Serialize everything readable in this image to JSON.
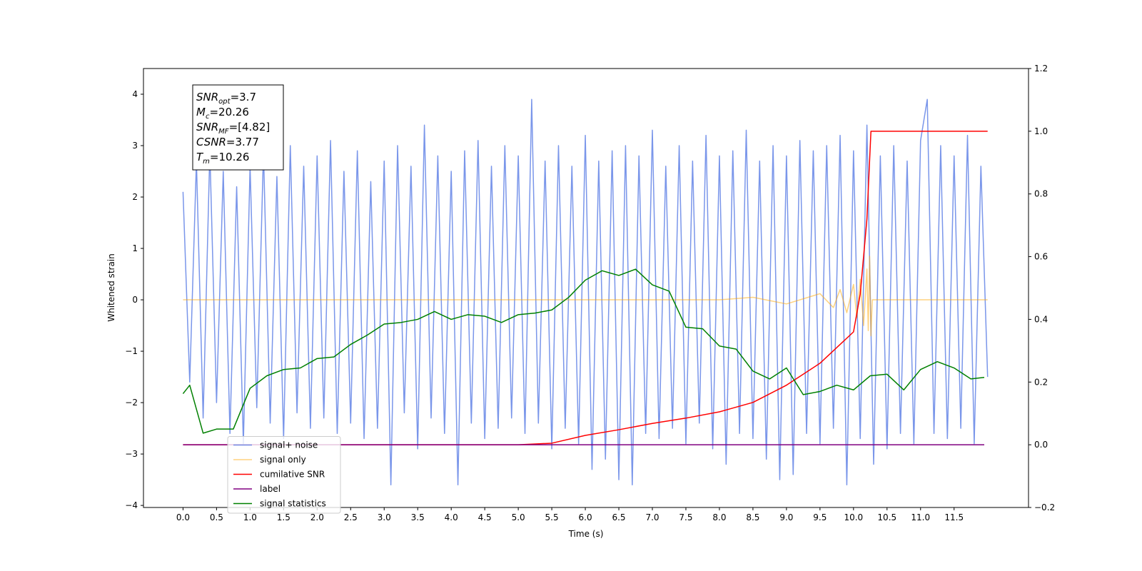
{
  "chart_data": {
    "type": "line",
    "xlabel": "Time (s)",
    "ylabel": "Whitened strain",
    "xlim": [
      -0.59,
      12.61
    ],
    "ylim": [
      -4.04,
      4.5
    ],
    "y2lim": [
      -0.2,
      1.2
    ],
    "xticks": [
      {
        "value": 0,
        "label": "0.0"
      },
      0.5,
      {
        "value": 1,
        "label": "1.0"
      },
      1.5,
      {
        "value": 2,
        "label": "2.0"
      },
      2.5,
      {
        "value": 3,
        "label": "3.0"
      },
      3.5,
      {
        "value": 4,
        "label": "4.0"
      },
      4.5,
      {
        "value": 5,
        "label": "5.0"
      },
      5.5,
      {
        "value": 6,
        "label": "6.0"
      },
      6.5,
      {
        "value": 7,
        "label": "7.0"
      },
      7.5,
      {
        "value": 8,
        "label": "8.0"
      },
      8.5,
      {
        "value": 9,
        "label": "9.0"
      },
      9.5,
      {
        "value": 10,
        "label": "10.0"
      },
      10.5,
      {
        "value": 11,
        "label": "11.0"
      },
      11.5
    ],
    "yticks": [
      {
        "value": -4,
        "label": "−4"
      },
      {
        "value": -3,
        "label": "−3"
      },
      {
        "value": -2,
        "label": "−2"
      },
      {
        "value": -1,
        "label": "−1"
      },
      0,
      1,
      2,
      3,
      4
    ],
    "y2ticks": [
      {
        "value": -0.2,
        "label": "−0.2"
      },
      {
        "value": 0,
        "label": "0.0"
      },
      0.2,
      0.4,
      0.6,
      0.8,
      {
        "value": 1,
        "label": "1.0"
      },
      1.2
    ],
    "legend": "lower left",
    "annotations": [
      {
        "symbol": "SNR",
        "subscript": "opt",
        "text": "=3.7"
      },
      {
        "symbol": "M",
        "subscript": "c",
        "text": "=20.26"
      },
      {
        "symbol": "SNR",
        "subscript": "MF",
        "text": "=[4.82]"
      },
      {
        "symbol": "CSNR",
        "text": "=3.77"
      },
      {
        "symbol": "T",
        "subscript": "m",
        "text": "=10.26"
      }
    ],
    "series": [
      {
        "name": "signal+ noise",
        "color": "#4169e1",
        "alpha": 0.7,
        "axis": "y",
        "x": [
          0,
          0.1,
          0.2,
          0.3,
          0.4,
          0.5,
          0.6,
          0.7,
          0.8,
          0.9,
          1,
          1.1,
          1.2,
          1.3,
          1.4,
          1.5,
          1.6,
          1.7,
          1.8,
          1.9,
          2,
          2.1,
          2.2,
          2.3,
          2.4,
          2.5,
          2.6,
          2.7,
          2.8,
          2.9,
          3,
          3.1,
          3.2,
          3.3,
          3.4,
          3.5,
          3.6,
          3.7,
          3.8,
          3.9,
          4,
          4.1,
          4.2,
          4.3,
          4.4,
          4.5,
          4.6,
          4.7,
          4.8,
          4.9,
          5,
          5.1,
          5.2,
          5.3,
          5.4,
          5.5,
          5.6,
          5.7,
          5.8,
          5.9,
          6,
          6.1,
          6.2,
          6.3,
          6.4,
          6.5,
          6.6,
          6.7,
          6.8,
          6.9,
          7,
          7.1,
          7.2,
          7.3,
          7.4,
          7.5,
          7.6,
          7.7,
          7.8,
          7.9,
          8,
          8.1,
          8.2,
          8.3,
          8.4,
          8.5,
          8.6,
          8.7,
          8.8,
          8.9,
          9,
          9.1,
          9.2,
          9.3,
          9.4,
          9.5,
          9.6,
          9.7,
          9.8,
          9.9,
          10,
          10.1,
          10.2,
          10.3,
          10.4,
          10.5,
          10.6,
          10.7,
          10.8,
          10.9,
          11,
          11.1,
          11.2,
          11.3,
          11.4,
          11.5,
          11.6,
          11.7,
          11.8,
          11.9,
          12
        ],
        "values": [
          2.1,
          -1.6,
          2.7,
          -2.3,
          2.9,
          -2.0,
          2.5,
          -2.6,
          2.2,
          -2.8,
          2.6,
          -2.1,
          2.9,
          -2.4,
          2.4,
          -2.7,
          3.0,
          -2.2,
          2.6,
          -2.5,
          2.8,
          -2.3,
          3.1,
          -2.6,
          2.5,
          -2.4,
          2.9,
          -2.7,
          2.3,
          -2.5,
          2.7,
          -3.6,
          3.0,
          -2.2,
          2.6,
          -2.9,
          3.4,
          -2.3,
          2.8,
          -2.6,
          2.5,
          -3.6,
          2.9,
          -2.4,
          3.1,
          -2.7,
          2.6,
          -2.5,
          3.0,
          -2.3,
          2.8,
          -2.6,
          3.9,
          -2.4,
          2.7,
          -2.9,
          3.0,
          -2.5,
          2.6,
          -2.8,
          3.2,
          -3.3,
          2.7,
          -3.1,
          2.9,
          -3.5,
          3.0,
          -3.6,
          2.8,
          -2.6,
          3.3,
          -2.7,
          2.6,
          -2.5,
          3.0,
          -2.8,
          2.7,
          -2.4,
          3.2,
          -2.9,
          2.8,
          -3.2,
          2.9,
          -2.6,
          3.3,
          -2.7,
          2.7,
          -3.1,
          3.0,
          -3.5,
          2.8,
          -3.4,
          3.1,
          -2.6,
          2.9,
          -2.8,
          3.0,
          -2.5,
          3.2,
          -3.6,
          2.9,
          -2.7,
          3.4,
          -3.2,
          2.8,
          -2.9,
          3.0,
          -2.6,
          2.7,
          -2.8,
          3.1,
          3.9,
          -2.6,
          3.0,
          -2.7,
          2.8,
          -2.5,
          3.2,
          -2.8,
          2.6,
          -1.5
        ]
      },
      {
        "name": "signal only",
        "color": "#ffa500",
        "alpha": 0.5,
        "axis": "y",
        "x": [
          0,
          8,
          8.5,
          9,
          9.5,
          9.7,
          9.8,
          9.9,
          10,
          10.05,
          10.1,
          10.15,
          10.2,
          10.22,
          10.24,
          10.26,
          10.28,
          12
        ],
        "values": [
          0,
          0,
          0.05,
          -0.08,
          0.12,
          -0.15,
          0.2,
          -0.25,
          0.3,
          -0.35,
          0.4,
          -0.5,
          0.6,
          -0.6,
          0.85,
          -0.7,
          0,
          0
        ]
      },
      {
        "name": "cumilative SNR",
        "color": "#ff0000",
        "alpha": 1,
        "axis": "y2",
        "x": [
          0,
          5,
          5.5,
          6,
          6.5,
          7,
          7.5,
          8,
          8.5,
          9,
          9.5,
          9.8,
          10,
          10.1,
          10.2,
          10.26,
          12
        ],
        "values": [
          0,
          0,
          0.005,
          0.03,
          0.048,
          0.068,
          0.085,
          0.105,
          0.135,
          0.19,
          0.26,
          0.32,
          0.36,
          0.48,
          0.72,
          1.0,
          1.0
        ]
      },
      {
        "name": "label",
        "color": "#800080",
        "alpha": 1,
        "axis": "y2",
        "x": [
          0,
          11.95
        ],
        "values": [
          0,
          0
        ]
      },
      {
        "name": "signal statistics",
        "color": "#008000",
        "alpha": 1,
        "axis": "y2",
        "x": [
          0,
          0.1,
          0.3,
          0.5,
          0.75,
          1,
          1.25,
          1.5,
          1.75,
          2,
          2.25,
          2.5,
          2.75,
          3,
          3.25,
          3.5,
          3.75,
          4,
          4.25,
          4.5,
          4.75,
          5,
          5.25,
          5.5,
          5.75,
          6,
          6.25,
          6.5,
          6.75,
          7,
          7.25,
          7.5,
          7.75,
          8,
          8.25,
          8.5,
          8.75,
          9,
          9.25,
          9.5,
          9.75,
          10,
          10.25,
          10.5,
          10.75,
          11,
          11.25,
          11.5,
          11.75,
          11.95
        ],
        "values": [
          0.163,
          0.19,
          0.037,
          0.05,
          0.05,
          0.18,
          0.22,
          0.24,
          0.245,
          0.275,
          0.28,
          0.32,
          0.35,
          0.385,
          0.39,
          0.4,
          0.425,
          0.4,
          0.415,
          0.41,
          0.39,
          0.415,
          0.42,
          0.43,
          0.47,
          0.525,
          0.555,
          0.54,
          0.56,
          0.51,
          0.49,
          0.375,
          0.37,
          0.315,
          0.305,
          0.235,
          0.21,
          0.245,
          0.16,
          0.17,
          0.19,
          0.175,
          0.22,
          0.225,
          0.175,
          0.24,
          0.265,
          0.245,
          0.21,
          0.215
        ]
      }
    ]
  }
}
